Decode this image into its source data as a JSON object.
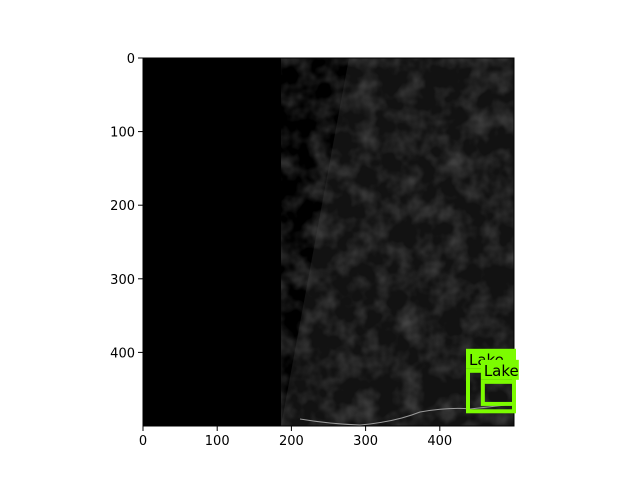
{
  "chart_data": {
    "type": "image",
    "title": "",
    "xlabel": "",
    "ylabel": "",
    "xlim": [
      0,
      500
    ],
    "ylim": [
      500,
      0
    ],
    "x_ticks": [
      0,
      100,
      200,
      300,
      400
    ],
    "y_ticks": [
      0,
      100,
      200,
      300,
      400
    ],
    "image_size": [
      500,
      500
    ],
    "colors": {
      "no_data": "#000000",
      "scene": "#121212",
      "detection_box": "#7CFC00"
    },
    "detections": [
      {
        "label": "Lake",
        "x": [
          438,
          500
        ],
        "y": [
          425,
          480
        ]
      },
      {
        "label": "Lake",
        "x": [
          458,
          500
        ],
        "y": [
          440,
          470
        ]
      }
    ]
  }
}
